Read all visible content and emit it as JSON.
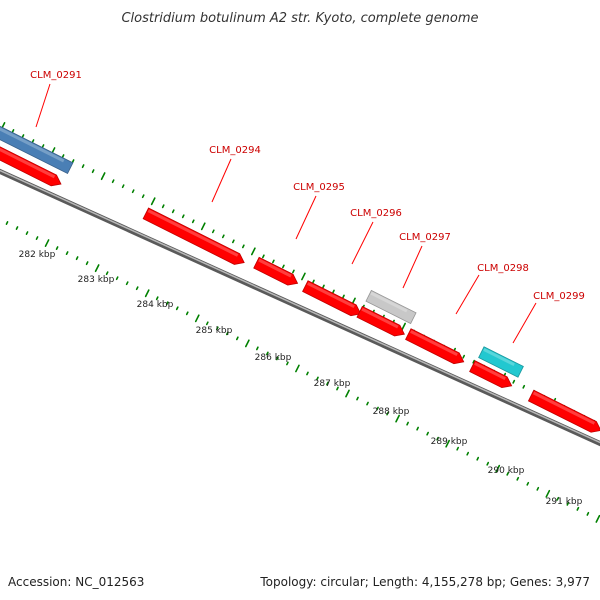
{
  "title": "Clostridium botulinum A2 str. Kyoto, complete genome",
  "footer": {
    "accession": "Accession: NC_012563",
    "summary": "Topology: circular; Length: 4,155,278 bp; Genes: 3,977"
  },
  "colors": {
    "dots": "#008000",
    "backbone": "#808080",
    "label": "#cc0000",
    "leader": "#ff0000"
  },
  "scale_ticks": [
    "282 kbp",
    "283 kbp",
    "284 kbp",
    "285 kbp",
    "286 kbp",
    "287 kbp",
    "288 kbp",
    "289 kbp",
    "290 kbp",
    "291 kbp"
  ],
  "gene_labels": [
    "CLM_0291",
    "CLM_0294",
    "CLM_0295",
    "CLM_0296",
    "CLM_0297",
    "CLM_0298",
    "CLM_0299"
  ],
  "genes": [
    {
      "name": "CLM_0291",
      "color": "#4a7fb5",
      "strand": "forward"
    },
    {
      "color": "#ff0000",
      "strand": "reverse"
    },
    {
      "color": "#ff0000",
      "strand": "reverse"
    },
    {
      "color": "#ff0000",
      "strand": "reverse"
    },
    {
      "color": "#ff0000",
      "strand": "reverse"
    },
    {
      "name": "CLM_0296",
      "color": "#c8c8c8",
      "strand": "forward"
    },
    {
      "color": "#ff0000",
      "strand": "reverse"
    },
    {
      "color": "#ff0000",
      "strand": "reverse"
    },
    {
      "name": "CLM_0299",
      "color": "#22c8d0",
      "strand": "forward"
    },
    {
      "color": "#ff0000",
      "strand": "reverse"
    },
    {
      "color": "#ff0000",
      "strand": "reverse"
    }
  ]
}
